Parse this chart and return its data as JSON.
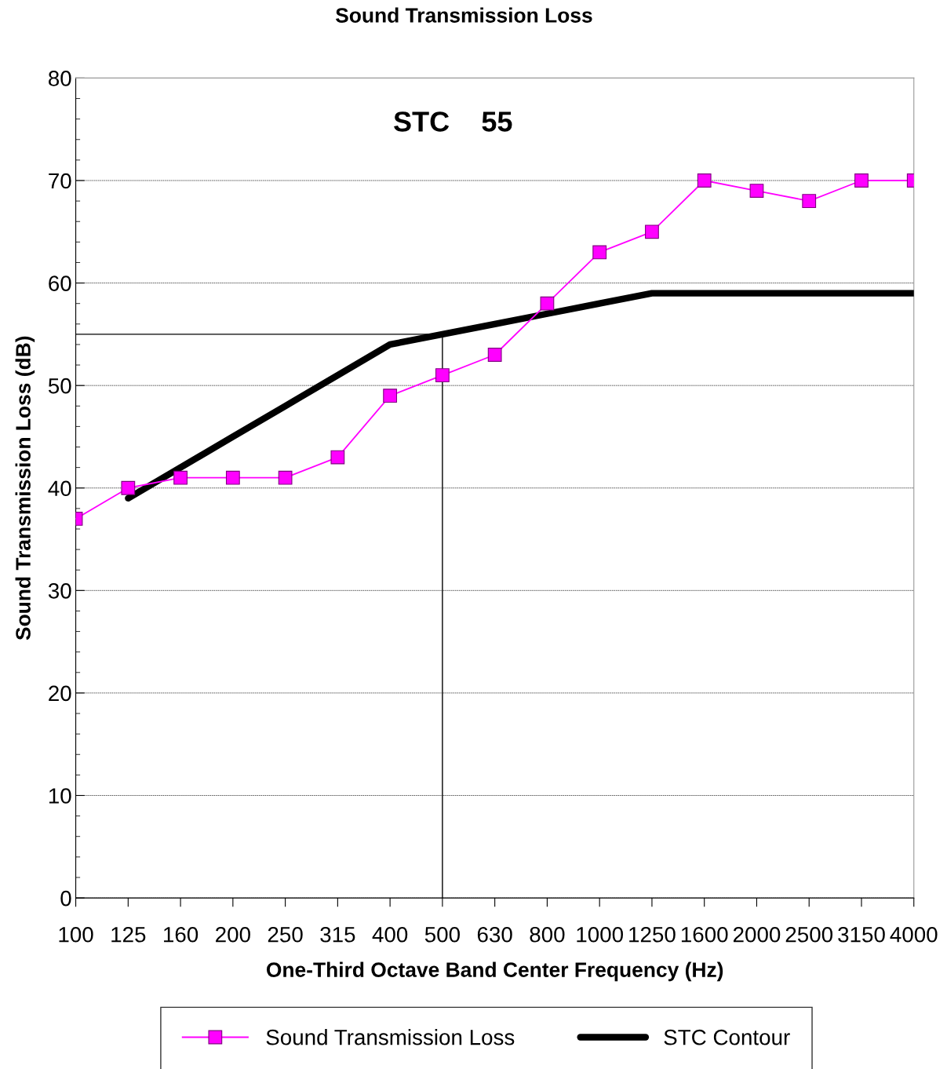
{
  "chart_data": {
    "type": "line",
    "title": "Sound Transmission Loss",
    "xlabel": "One-Third Octave Band Center Frequency (Hz)",
    "ylabel": "Sound Transmission Loss (dB)",
    "categories": [
      "100",
      "125",
      "160",
      "200",
      "250",
      "315",
      "400",
      "500",
      "630",
      "800",
      "1000",
      "1250",
      "1600",
      "2000",
      "2500",
      "3150",
      "4000"
    ],
    "series": [
      {
        "name": "Sound Transmission Loss",
        "color": "#ff00ff",
        "marker": "square",
        "values": [
          37,
          40,
          41,
          41,
          41,
          43,
          49,
          51,
          53,
          58,
          63,
          65,
          70,
          69,
          68,
          70,
          70
        ]
      },
      {
        "name": "STC Contour",
        "color": "#000000",
        "marker": "none",
        "values": [
          null,
          39,
          42,
          45,
          48,
          51,
          54,
          55,
          56,
          57,
          58,
          59,
          59,
          59,
          59,
          59,
          59
        ]
      }
    ],
    "ylim": [
      0,
      80
    ],
    "yticks": [
      0,
      10,
      20,
      30,
      40,
      50,
      60,
      70,
      80
    ],
    "grid": "y",
    "legend": "bottom",
    "ref_lines": [
      {
        "axis": "y",
        "value": 55,
        "color": "#000000"
      },
      {
        "axis": "x",
        "value": "500",
        "color": "#000000"
      }
    ],
    "annotations": [
      "STC    55"
    ]
  }
}
